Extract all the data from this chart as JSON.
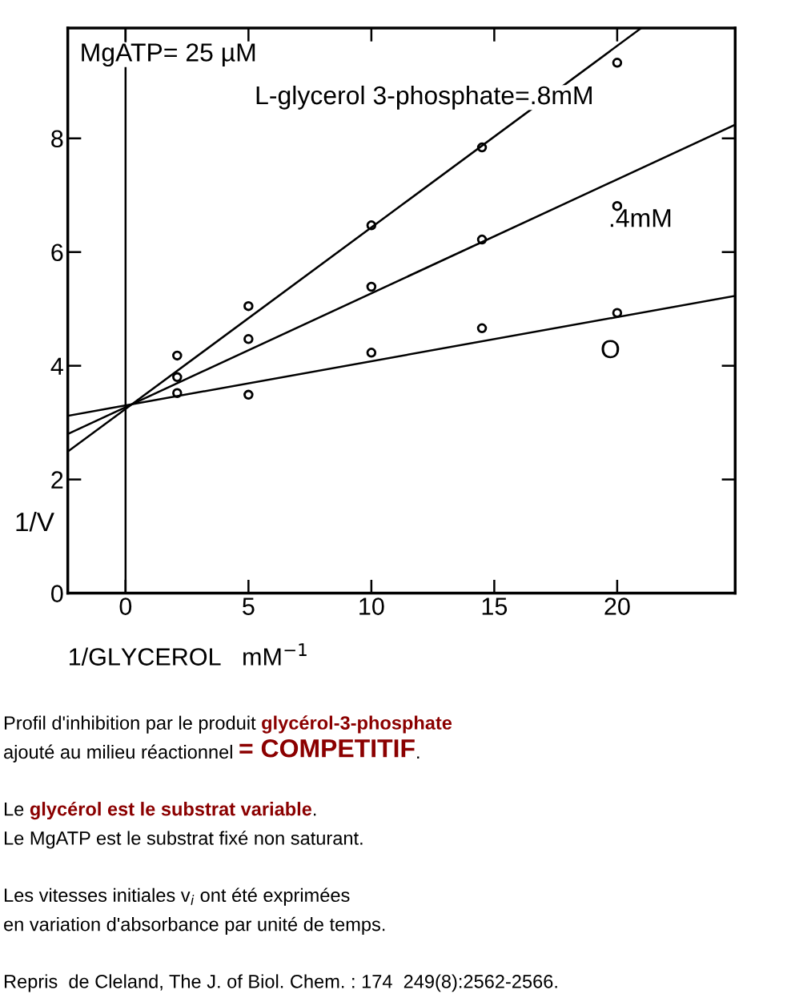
{
  "chart_data": {
    "type": "scatter",
    "xlabel": "1/GLYCEROL   mM$^{−1}$",
    "ylabel": "1/V",
    "xlim": [
      -2.35,
      24.8
    ],
    "ylim": [
      0,
      9.94
    ],
    "xticks": [
      0,
      5,
      10,
      15,
      20
    ],
    "yticks": [
      0,
      2,
      4,
      6,
      8
    ],
    "grid": false,
    "legend": false,
    "ref_lines": [
      {
        "axis": "x",
        "value": 0,
        "color": "#000000"
      }
    ],
    "series": [
      {
        "marker": "circle",
        "color": "#000000",
        "x": [
          2.1,
          5,
          10,
          14.5,
          20
        ],
        "values": [
          3.52,
          3.49,
          4.23,
          4.66,
          4.93
        ]
      },
      {
        "marker": "circle",
        "color": "#000000",
        "x": [
          2.1,
          5,
          10,
          14.5,
          20
        ],
        "values": [
          3.8,
          4.47,
          5.39,
          6.22,
          6.81
        ]
      },
      {
        "marker": "circle",
        "color": "#000000",
        "x": [
          2.1,
          5,
          10,
          14.5,
          20
        ],
        "values": [
          4.18,
          5.05,
          6.47,
          7.84,
          9.33
        ]
      },
      {
        "type": "line",
        "marker": "none",
        "color": "#000000",
        "x": [
          -2.35,
          24.8
        ],
        "values": [
          3.12,
          5.23
        ]
      },
      {
        "type": "line",
        "marker": "none",
        "color": "#000000",
        "x": [
          -2.35,
          24.8
        ],
        "values": [
          2.8,
          8.24
        ]
      },
      {
        "type": "line",
        "marker": "none",
        "color": "#000000",
        "x": [
          -2.35,
          20.98
        ],
        "values": [
          2.49,
          9.94
        ]
      }
    ],
    "annotations": [
      "MgATP= 25 µM",
      "L-glycerol 3-phosphate=.8mM",
      ".4mM",
      "O",
      "Profil d'inhibition par le produit ",
      "glycérol-3-phosphate",
      "ajouté au milieu réactionnel ",
      "= COMPETITIF",
      ".",
      "Le ",
      "glycérol est le substrat variable",
      ".",
      "Le MgATP est le substrat fixé non saturant.",
      "Les vitesses initiales v$_{i}$ ont été exprimées",
      "en variation d'absorbance par unité de temps.",
      "Repris  de Cleland, The J. of Biol. Chem. : 174  249(8):2562-2566."
    ]
  }
}
